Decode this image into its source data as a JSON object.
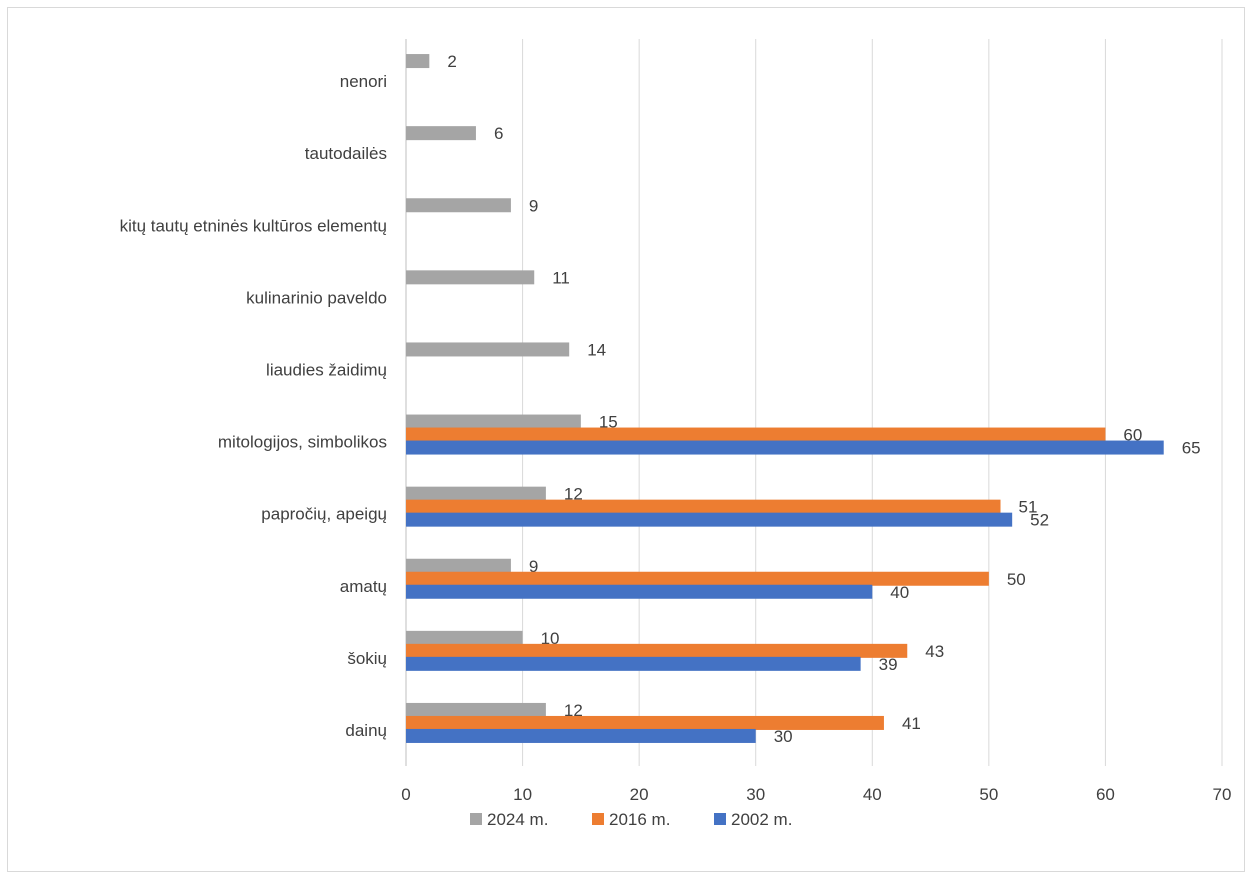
{
  "chart_data": {
    "type": "bar",
    "orientation": "horizontal",
    "categories": [
      "dainų",
      "šokių",
      "amatų",
      "papročių, apeigų",
      "mitologijos, simbolikos",
      "liaudies žaidimų",
      "kulinarinio paveldo",
      "kitų tautų etninės kultūros elementų",
      "tautodailės",
      "nenori"
    ],
    "series": [
      {
        "name": "2024 m.",
        "color": "#a5a5a5",
        "values": [
          12,
          10,
          9,
          12,
          15,
          14,
          11,
          9,
          6,
          2
        ]
      },
      {
        "name": "2016 m.",
        "color": "#ed7d31",
        "values": [
          41,
          43,
          50,
          51,
          60,
          null,
          null,
          null,
          null,
          null
        ]
      },
      {
        "name": "2002 m.",
        "color": "#4472c4",
        "values": [
          30,
          39,
          40,
          52,
          65,
          null,
          null,
          null,
          null,
          null
        ]
      }
    ],
    "xlim": [
      0,
      70
    ],
    "xticks": [
      0,
      10,
      20,
      30,
      40,
      50,
      60,
      70
    ],
    "grid": "vertical",
    "legend": "bottom",
    "data_labels": true,
    "title": "",
    "xlabel": "",
    "ylabel": ""
  }
}
